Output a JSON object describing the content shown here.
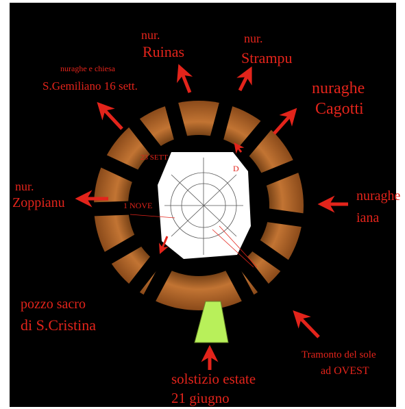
{
  "labels": {
    "ruinas": [
      "nur.",
      "Ruinas"
    ],
    "strampu": [
      "nur.",
      "Strampu"
    ],
    "cagotti": [
      "nuraghe",
      "Cagotti"
    ],
    "gemiliano": [
      "nuraghe e chiesa",
      "S.Gemiliano 16 sett."
    ],
    "zoppianu": [
      "nur.",
      "Zoppianu"
    ],
    "iana": [
      "nuraghe",
      "iana"
    ],
    "cristina": [
      "pozzo sacro",
      "di S.Cristina"
    ],
    "tramonto": [
      "Tramonto del sole",
      "ad OVEST"
    ],
    "solstizio": [
      "solstizio estate",
      "21 giugno"
    ]
  },
  "inner": {
    "sett": "23 SETT",
    "nove": "1 NOVE",
    "d": "D"
  }
}
